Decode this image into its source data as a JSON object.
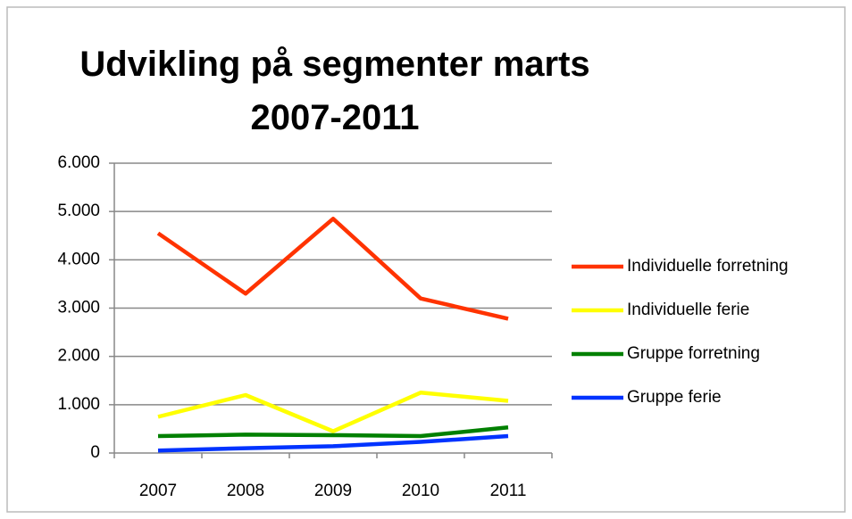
{
  "chart_data": {
    "type": "line",
    "title": "Udvikling på segmenter marts 2007-2011",
    "categories": [
      "2007",
      "2008",
      "2009",
      "2010",
      "2011"
    ],
    "series": [
      {
        "name": "Individuelle forretning",
        "color": "#ff3300",
        "values": [
          4550,
          3300,
          4850,
          3200,
          2780
        ]
      },
      {
        "name": "Individuelle ferie",
        "color": "#ffff00",
        "values": [
          750,
          1200,
          450,
          1250,
          1080
        ]
      },
      {
        "name": "Gruppe forretning",
        "color": "#008000",
        "values": [
          350,
          380,
          370,
          350,
          530
        ]
      },
      {
        "name": "Gruppe ferie",
        "color": "#0033ff",
        "values": [
          50,
          100,
          140,
          230,
          350
        ]
      }
    ],
    "ylim": [
      0,
      6000
    ],
    "yticks": [
      0,
      {
        "value": 1000,
        "label": "1.000"
      },
      {
        "value": 2000,
        "label": "2.000"
      },
      {
        "value": 3000,
        "label": "3.000"
      },
      {
        "value": 4000,
        "label": "4.000"
      },
      {
        "value": 5000,
        "label": "5.000"
      },
      {
        "value": 6000,
        "label": "6.000"
      }
    ],
    "grid": true,
    "legend": "right"
  }
}
